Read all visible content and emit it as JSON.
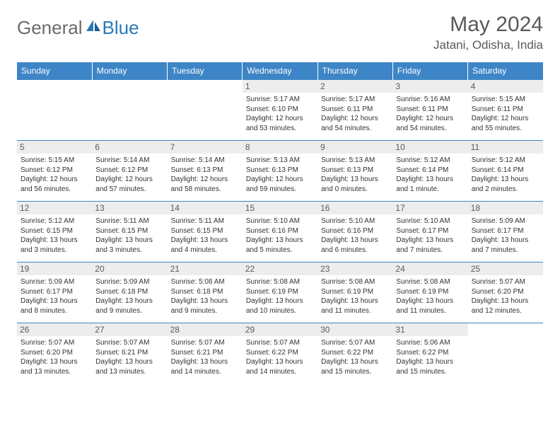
{
  "logo": {
    "general": "General",
    "blue": "Blue"
  },
  "title": "May 2024",
  "location": "Jatani, Odisha, India",
  "colors": {
    "header_bg": "#3d85c6",
    "header_text": "#ffffff",
    "border": "#3d85c6",
    "daynum_bg": "#ededed",
    "body_text": "#333333",
    "title_text": "#595959",
    "logo_gray": "#6b6b6b",
    "logo_blue": "#2a7ab8"
  },
  "day_headers": [
    "Sunday",
    "Monday",
    "Tuesday",
    "Wednesday",
    "Thursday",
    "Friday",
    "Saturday"
  ],
  "weeks": [
    [
      null,
      null,
      null,
      {
        "n": "1",
        "sr": "5:17 AM",
        "ss": "6:10 PM",
        "dl": "12 hours and 53 minutes."
      },
      {
        "n": "2",
        "sr": "5:17 AM",
        "ss": "6:11 PM",
        "dl": "12 hours and 54 minutes."
      },
      {
        "n": "3",
        "sr": "5:16 AM",
        "ss": "6:11 PM",
        "dl": "12 hours and 54 minutes."
      },
      {
        "n": "4",
        "sr": "5:15 AM",
        "ss": "6:11 PM",
        "dl": "12 hours and 55 minutes."
      }
    ],
    [
      {
        "n": "5",
        "sr": "5:15 AM",
        "ss": "6:12 PM",
        "dl": "12 hours and 56 minutes."
      },
      {
        "n": "6",
        "sr": "5:14 AM",
        "ss": "6:12 PM",
        "dl": "12 hours and 57 minutes."
      },
      {
        "n": "7",
        "sr": "5:14 AM",
        "ss": "6:13 PM",
        "dl": "12 hours and 58 minutes."
      },
      {
        "n": "8",
        "sr": "5:13 AM",
        "ss": "6:13 PM",
        "dl": "12 hours and 59 minutes."
      },
      {
        "n": "9",
        "sr": "5:13 AM",
        "ss": "6:13 PM",
        "dl": "13 hours and 0 minutes."
      },
      {
        "n": "10",
        "sr": "5:12 AM",
        "ss": "6:14 PM",
        "dl": "13 hours and 1 minute."
      },
      {
        "n": "11",
        "sr": "5:12 AM",
        "ss": "6:14 PM",
        "dl": "13 hours and 2 minutes."
      }
    ],
    [
      {
        "n": "12",
        "sr": "5:12 AM",
        "ss": "6:15 PM",
        "dl": "13 hours and 3 minutes."
      },
      {
        "n": "13",
        "sr": "5:11 AM",
        "ss": "6:15 PM",
        "dl": "13 hours and 3 minutes."
      },
      {
        "n": "14",
        "sr": "5:11 AM",
        "ss": "6:15 PM",
        "dl": "13 hours and 4 minutes."
      },
      {
        "n": "15",
        "sr": "5:10 AM",
        "ss": "6:16 PM",
        "dl": "13 hours and 5 minutes."
      },
      {
        "n": "16",
        "sr": "5:10 AM",
        "ss": "6:16 PM",
        "dl": "13 hours and 6 minutes."
      },
      {
        "n": "17",
        "sr": "5:10 AM",
        "ss": "6:17 PM",
        "dl": "13 hours and 7 minutes."
      },
      {
        "n": "18",
        "sr": "5:09 AM",
        "ss": "6:17 PM",
        "dl": "13 hours and 7 minutes."
      }
    ],
    [
      {
        "n": "19",
        "sr": "5:09 AM",
        "ss": "6:17 PM",
        "dl": "13 hours and 8 minutes."
      },
      {
        "n": "20",
        "sr": "5:09 AM",
        "ss": "6:18 PM",
        "dl": "13 hours and 9 minutes."
      },
      {
        "n": "21",
        "sr": "5:08 AM",
        "ss": "6:18 PM",
        "dl": "13 hours and 9 minutes."
      },
      {
        "n": "22",
        "sr": "5:08 AM",
        "ss": "6:19 PM",
        "dl": "13 hours and 10 minutes."
      },
      {
        "n": "23",
        "sr": "5:08 AM",
        "ss": "6:19 PM",
        "dl": "13 hours and 11 minutes."
      },
      {
        "n": "24",
        "sr": "5:08 AM",
        "ss": "6:19 PM",
        "dl": "13 hours and 11 minutes."
      },
      {
        "n": "25",
        "sr": "5:07 AM",
        "ss": "6:20 PM",
        "dl": "13 hours and 12 minutes."
      }
    ],
    [
      {
        "n": "26",
        "sr": "5:07 AM",
        "ss": "6:20 PM",
        "dl": "13 hours and 13 minutes."
      },
      {
        "n": "27",
        "sr": "5:07 AM",
        "ss": "6:21 PM",
        "dl": "13 hours and 13 minutes."
      },
      {
        "n": "28",
        "sr": "5:07 AM",
        "ss": "6:21 PM",
        "dl": "13 hours and 14 minutes."
      },
      {
        "n": "29",
        "sr": "5:07 AM",
        "ss": "6:22 PM",
        "dl": "13 hours and 14 minutes."
      },
      {
        "n": "30",
        "sr": "5:07 AM",
        "ss": "6:22 PM",
        "dl": "13 hours and 15 minutes."
      },
      {
        "n": "31",
        "sr": "5:06 AM",
        "ss": "6:22 PM",
        "dl": "13 hours and 15 minutes."
      },
      null
    ]
  ],
  "labels": {
    "sunrise": "Sunrise: ",
    "sunset": "Sunset: ",
    "daylight": "Daylight: "
  }
}
